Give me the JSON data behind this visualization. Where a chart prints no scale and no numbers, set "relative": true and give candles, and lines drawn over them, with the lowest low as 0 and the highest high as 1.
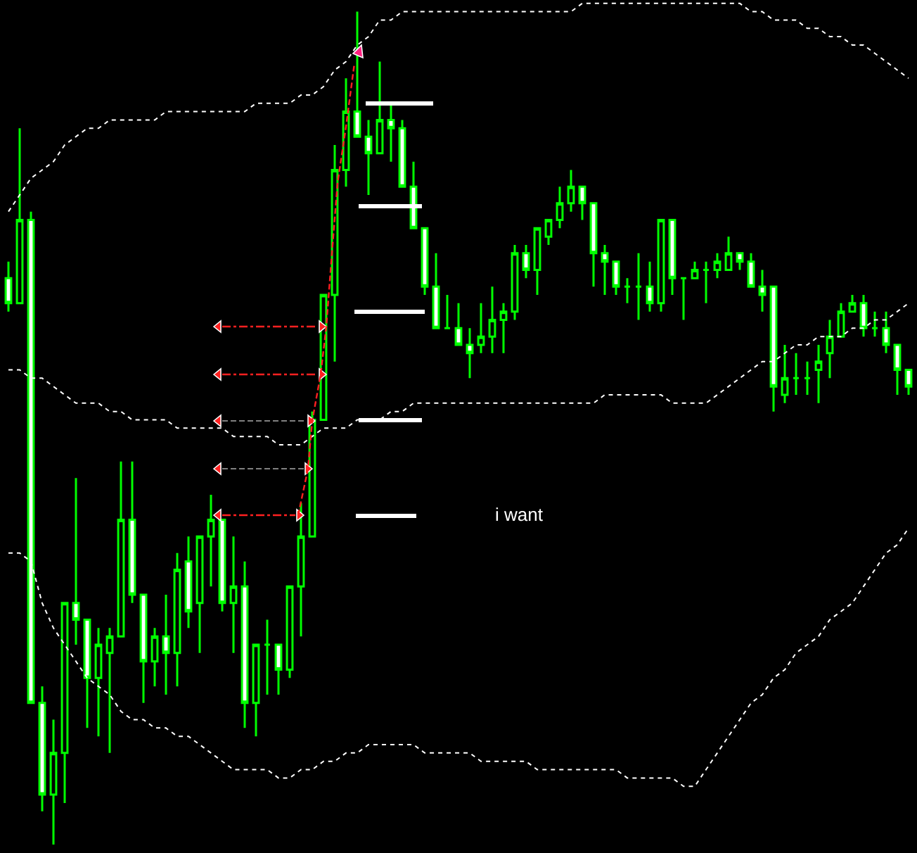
{
  "chart_data": {
    "type": "candlestick",
    "relative": true,
    "color": "#00ff00",
    "categories": [
      null,
      null,
      null,
      null,
      null,
      null,
      null,
      null,
      null,
      null,
      null,
      null,
      null,
      null,
      null,
      null,
      null,
      null,
      null,
      null,
      null,
      null,
      null,
      null,
      null,
      null,
      null,
      null,
      null,
      null,
      null,
      null,
      null,
      null,
      null,
      null,
      null,
      null,
      null,
      null,
      null,
      null,
      null,
      null,
      null,
      null,
      null,
      null,
      null,
      null,
      null,
      null,
      null,
      null,
      null,
      null,
      null,
      null,
      null,
      null,
      null,
      null,
      null,
      null,
      null,
      null,
      null,
      null,
      null,
      null,
      null,
      null,
      null,
      null,
      null,
      null,
      null,
      null,
      null,
      null,
      null
    ],
    "ohlc": [
      [
        0.68,
        0.7,
        0.64,
        0.65
      ],
      [
        0.65,
        0.86,
        0.65,
        0.75
      ],
      [
        0.75,
        0.76,
        0.17,
        0.17
      ],
      [
        0.17,
        0.19,
        0.04,
        0.06
      ],
      [
        0.06,
        0.15,
        0,
        0.11
      ],
      [
        0.11,
        0.29,
        0.05,
        0.29
      ],
      [
        0.29,
        0.44,
        0.24,
        0.27
      ],
      [
        0.27,
        0.27,
        0.14,
        0.2
      ],
      [
        0.2,
        0.26,
        0.13,
        0.24
      ],
      [
        0.23,
        0.26,
        0.11,
        0.25
      ],
      [
        0.25,
        0.46,
        0.25,
        0.39
      ],
      [
        0.39,
        0.46,
        0.29,
        0.3
      ],
      [
        0.3,
        0.3,
        0.17,
        0.22
      ],
      [
        0.22,
        0.26,
        0.19,
        0.25
      ],
      [
        0.25,
        0.3,
        0.18,
        0.23
      ],
      [
        0.23,
        0.35,
        0.19,
        0.33
      ],
      [
        0.34,
        0.37,
        0.26,
        0.28
      ],
      [
        0.29,
        0.37,
        0.23,
        0.37
      ],
      [
        0.37,
        0.42,
        0.31,
        0.39
      ],
      [
        0.39,
        0.39,
        0.28,
        0.29
      ],
      [
        0.29,
        0.37,
        0.23,
        0.31
      ],
      [
        0.31,
        0.34,
        0.14,
        0.17
      ],
      [
        0.17,
        0.24,
        0.13,
        0.24
      ],
      [
        0.24,
        0.27,
        0.18,
        0.24
      ],
      [
        0.24,
        0.24,
        0.18,
        0.21
      ],
      [
        0.21,
        0.31,
        0.2,
        0.31
      ],
      [
        0.31,
        0.41,
        0.25,
        0.37
      ],
      [
        0.37,
        0.52,
        0.37,
        0.51
      ],
      [
        0.51,
        0.66,
        0.51,
        0.66
      ],
      [
        0.66,
        0.84,
        0.58,
        0.81
      ],
      [
        0.81,
        0.92,
        0.79,
        0.88
      ],
      [
        0.88,
        1,
        0.85,
        0.85
      ],
      [
        0.85,
        0.87,
        0.78,
        0.83
      ],
      [
        0.83,
        0.94,
        0.83,
        0.87
      ],
      [
        0.87,
        0.89,
        0.82,
        0.86
      ],
      [
        0.86,
        0.87,
        0.79,
        0.79
      ],
      [
        0.79,
        0.82,
        0.74,
        0.74
      ],
      [
        0.74,
        0.74,
        0.66,
        0.67
      ],
      [
        0.67,
        0.71,
        0.62,
        0.62
      ],
      [
        0.62,
        0.66,
        0.62,
        0.62
      ],
      [
        0.62,
        0.65,
        0.6,
        0.6
      ],
      [
        0.6,
        0.62,
        0.56,
        0.59
      ],
      [
        0.6,
        0.65,
        0.59,
        0.61
      ],
      [
        0.61,
        0.67,
        0.59,
        0.63
      ],
      [
        0.63,
        0.65,
        0.59,
        0.64
      ],
      [
        0.64,
        0.72,
        0.63,
        0.71
      ],
      [
        0.71,
        0.72,
        0.68,
        0.69
      ],
      [
        0.69,
        0.74,
        0.66,
        0.74
      ],
      [
        0.73,
        0.75,
        0.72,
        0.75
      ],
      [
        0.75,
        0.79,
        0.74,
        0.77
      ],
      [
        0.77,
        0.81,
        0.76,
        0.79
      ],
      [
        0.79,
        0.79,
        0.75,
        0.77
      ],
      [
        0.77,
        0.77,
        0.67,
        0.71
      ],
      [
        0.71,
        0.72,
        0.66,
        0.7
      ],
      [
        0.7,
        0.7,
        0.66,
        0.67
      ],
      [
        0.67,
        0.68,
        0.65,
        0.67
      ],
      [
        0.67,
        0.71,
        0.63,
        0.67
      ],
      [
        0.67,
        0.7,
        0.64,
        0.65
      ],
      [
        0.65,
        0.75,
        0.64,
        0.75
      ],
      [
        0.75,
        0.75,
        0.66,
        0.68
      ],
      [
        0.68,
        0.68,
        0.63,
        0.68
      ],
      [
        0.68,
        0.7,
        0.68,
        0.69
      ],
      [
        0.69,
        0.7,
        0.65,
        0.69
      ],
      [
        0.69,
        0.71,
        0.68,
        0.7
      ],
      [
        0.69,
        0.73,
        0.69,
        0.71
      ],
      [
        0.71,
        0.71,
        0.69,
        0.7
      ],
      [
        0.7,
        0.71,
        0.67,
        0.67
      ],
      [
        0.67,
        0.69,
        0.64,
        0.66
      ],
      [
        0.67,
        0.67,
        0.52,
        0.55
      ],
      [
        0.54,
        0.6,
        0.53,
        0.56
      ],
      [
        0.56,
        0.59,
        0.54,
        0.56
      ],
      [
        0.56,
        0.58,
        0.54,
        0.56
      ],
      [
        0.57,
        0.6,
        0.53,
        0.58
      ],
      [
        0.59,
        0.63,
        0.56,
        0.61
      ],
      [
        0.61,
        0.65,
        0.61,
        0.64
      ],
      [
        0.64,
        0.66,
        0.64,
        0.65
      ],
      [
        0.65,
        0.66,
        0.61,
        0.62
      ],
      [
        0.62,
        0.64,
        0.61,
        0.62
      ],
      [
        0.62,
        0.64,
        0.59,
        0.6
      ],
      [
        0.6,
        0.6,
        0.54,
        0.57
      ],
      [
        0.57,
        0.57,
        0.54,
        0.55
      ]
    ],
    "series": [
      {
        "type": "line",
        "color": "#ffffff",
        "line_style": "dashed",
        "values": [
          0.76,
          0.78,
          0.8,
          0.81,
          0.82,
          0.84,
          0.85,
          0.86,
          0.86,
          0.87,
          0.87,
          0.87,
          0.87,
          0.87,
          0.88,
          0.88,
          0.88,
          0.88,
          0.88,
          0.88,
          0.88,
          0.88,
          0.89,
          0.89,
          0.89,
          0.89,
          0.9,
          0.9,
          0.91,
          0.93,
          0.94,
          0.96,
          0.97,
          0.99,
          0.99,
          1.0,
          1.0,
          1.0,
          1.0,
          1.0,
          1.0,
          1.0,
          1.0,
          1.0,
          1.0,
          1.0,
          1.0,
          1.0,
          1.0,
          1.0,
          1.0,
          1.01,
          1.01,
          1.01,
          1.01,
          1.01,
          1.01,
          1.01,
          1.01,
          1.01,
          1.01,
          1.01,
          1.01,
          1.01,
          1.01,
          1.01,
          1.0,
          1.0,
          0.99,
          0.99,
          0.99,
          0.98,
          0.98,
          0.97,
          0.97,
          0.96,
          0.96,
          0.95,
          0.94,
          0.93,
          0.92
        ]
      },
      {
        "type": "line",
        "color": "#ffffff",
        "line_style": "dashed",
        "values": [
          0.57,
          0.57,
          0.56,
          0.56,
          0.55,
          0.54,
          0.53,
          0.53,
          0.53,
          0.52,
          0.52,
          0.51,
          0.51,
          0.51,
          0.51,
          0.5,
          0.5,
          0.5,
          0.5,
          0.5,
          0.49,
          0.49,
          0.49,
          0.49,
          0.48,
          0.48,
          0.48,
          0.49,
          0.5,
          0.5,
          0.5,
          0.51,
          0.51,
          0.51,
          0.52,
          0.52,
          0.53,
          0.53,
          0.53,
          0.53,
          0.53,
          0.53,
          0.53,
          0.53,
          0.53,
          0.53,
          0.53,
          0.53,
          0.53,
          0.53,
          0.53,
          0.53,
          0.53,
          0.54,
          0.54,
          0.54,
          0.54,
          0.54,
          0.54,
          0.53,
          0.53,
          0.53,
          0.53,
          0.54,
          0.55,
          0.56,
          0.57,
          0.58,
          0.58,
          0.59,
          0.6,
          0.6,
          0.61,
          0.61,
          0.61,
          0.62,
          0.62,
          0.63,
          0.63,
          0.64,
          0.65
        ]
      },
      {
        "type": "line",
        "color": "#ffffff",
        "line_style": "dashed",
        "values": [
          0.35,
          0.35,
          0.34,
          0.29,
          0.26,
          0.24,
          0.22,
          0.2,
          0.19,
          0.18,
          0.16,
          0.15,
          0.15,
          0.14,
          0.14,
          0.13,
          0.13,
          0.12,
          0.11,
          0.1,
          0.09,
          0.09,
          0.09,
          0.09,
          0.08,
          0.08,
          0.09,
          0.09,
          0.1,
          0.1,
          0.11,
          0.11,
          0.12,
          0.12,
          0.12,
          0.12,
          0.12,
          0.11,
          0.11,
          0.11,
          0.11,
          0.11,
          0.1,
          0.1,
          0.1,
          0.1,
          0.1,
          0.09,
          0.09,
          0.09,
          0.09,
          0.09,
          0.09,
          0.09,
          0.09,
          0.08,
          0.08,
          0.08,
          0.08,
          0.08,
          0.07,
          0.07,
          0.09,
          0.11,
          0.13,
          0.15,
          0.17,
          0.18,
          0.2,
          0.21,
          0.23,
          0.24,
          0.25,
          0.27,
          0.28,
          0.29,
          0.31,
          0.33,
          0.35,
          0.36,
          0.38
        ]
      }
    ],
    "annotations": [
      "i want"
    ]
  }
}
